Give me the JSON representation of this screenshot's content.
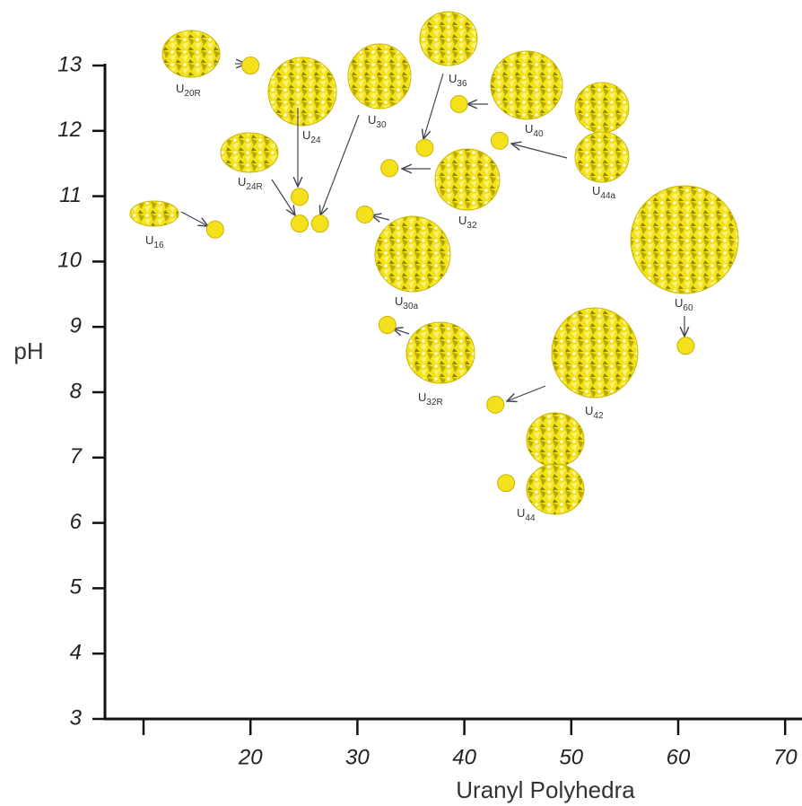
{
  "chart_data": {
    "type": "scatter",
    "xlabel": "Uranyl Polyhedra",
    "ylabel": "pH",
    "xlim": [
      6.4,
      71
    ],
    "ylim": [
      3,
      13
    ],
    "xticks": [
      {
        "value": 10,
        "label": null
      },
      20,
      30,
      40,
      50,
      60,
      70
    ],
    "yticks": [
      3,
      4,
      5,
      6,
      7,
      8,
      9,
      10,
      11,
      12,
      13
    ],
    "color": "#f5e11b",
    "x": [
      20,
      24.6,
      24.6,
      26.5,
      16.7,
      30.7,
      36.3,
      39.5,
      43.3,
      33.0,
      32.8,
      42.9,
      43.9,
      60.7
    ],
    "values": [
      13.0,
      10.99,
      10.58,
      10.58,
      10.49,
      10.72,
      11.74,
      12.41,
      11.85,
      11.43,
      9.03,
      7.81,
      6.61,
      8.71
    ],
    "labels": [
      {
        "text": "U",
        "sub": "20R"
      },
      {
        "text": "U",
        "sub": "24"
      },
      {
        "text": "U",
        "sub": "24R"
      },
      {
        "text": "U",
        "sub": "30"
      },
      {
        "text": "U",
        "sub": "16"
      },
      {
        "text": "U",
        "sub": "30a"
      },
      {
        "text": "U",
        "sub": "36"
      },
      {
        "text": "U",
        "sub": "40"
      },
      {
        "text": "U",
        "sub": "44a"
      },
      {
        "text": "U",
        "sub": "32"
      },
      {
        "text": "U",
        "sub": "32R"
      },
      {
        "text": "U",
        "sub": "42"
      },
      {
        "text": "U",
        "sub": "44"
      },
      {
        "text": "U",
        "sub": "60"
      }
    ]
  }
}
